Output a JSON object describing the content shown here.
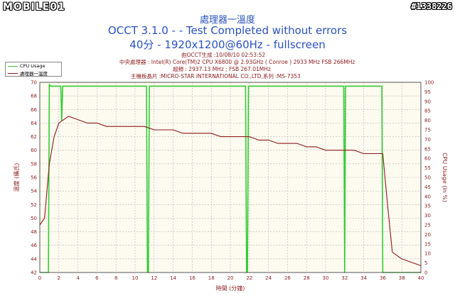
{
  "watermarks": {
    "left": "MOBILE01",
    "right": "#1338226"
  },
  "title_lines": [
    "處理器一溫度",
    "OCCT 3.1.0 -  - Test Completed without errors",
    "40分 - 1920x1200@60Hz - fullscreen"
  ],
  "info_lines": [
    "由OCCT生成 :10/08/10 02:53:52",
    "中央處理器 : Intel(R) Core(TM)2 CPU X6800 @ 2.93GHz ( Conroe ) 2933 MHz FSB 266MHz",
    "超頻 : 2937.13 MHz ; FSB 267.01MHz",
    "主機板晶片 :MICRO-STAR INTERNATIONAL CO.,LTD,系列 :MS-7353"
  ],
  "colors": {
    "cpu_usage": "#33cc33",
    "temperature": "#8b1a1a",
    "text_blue": "#2a52be",
    "plot_bg": "#fdfaf0",
    "grid": "#b5b5b5"
  },
  "chart_data": {
    "type": "line",
    "xlabel": "時間 (分鐘)",
    "ylabel_left": "溫度 (攝氏)",
    "ylabel_right": "CPU Usage (in %)",
    "xlim": [
      0,
      40
    ],
    "ylim_left": [
      42,
      70
    ],
    "ylim_right": [
      0,
      100
    ],
    "x_ticks": [
      0,
      2,
      4,
      6,
      8,
      10,
      12,
      14,
      16,
      18,
      20,
      22,
      24,
      26,
      28,
      30,
      32,
      34,
      36,
      38,
      40
    ],
    "y_ticks_left": [
      42,
      44,
      46,
      48,
      50,
      52,
      54,
      56,
      58,
      60,
      62,
      64,
      66,
      68,
      70
    ],
    "y_ticks_right": [
      0,
      5,
      10,
      15,
      20,
      25,
      30,
      35,
      40,
      45,
      50,
      55,
      60,
      65,
      70,
      75,
      80,
      85,
      90,
      95,
      100
    ],
    "grid": true,
    "legend_position": "top-left",
    "series": [
      {
        "name": "CPU Usage",
        "axis": "right",
        "x": [
          0,
          0.9,
          1.0,
          1.1,
          2.2,
          2.3,
          2.4,
          11.2,
          11.3,
          11.4,
          11.5,
          11.6,
          21.6,
          21.7,
          21.8,
          21.9,
          22.0,
          31.9,
          32.0,
          32.1,
          32.2,
          35.9,
          36.0,
          36.1,
          40
        ],
        "y": [
          0,
          0,
          99,
          98,
          98,
          80,
          98,
          98,
          0,
          0,
          98,
          98,
          98,
          0,
          0,
          98,
          98,
          98,
          0,
          98,
          98,
          98,
          0,
          0,
          0
        ]
      },
      {
        "name": "處理器一溫度",
        "axis": "left",
        "x": [
          0,
          0.5,
          1.0,
          1.5,
          2,
          3,
          4,
          5,
          6,
          7,
          8,
          9,
          10,
          11,
          12,
          13,
          14,
          15,
          16,
          17,
          18,
          19,
          20,
          21,
          22,
          23,
          24,
          25,
          26,
          27,
          28,
          29,
          30,
          31,
          32,
          33,
          34,
          35,
          36,
          36.5,
          37,
          38,
          39,
          40
        ],
        "y": [
          49,
          50,
          58,
          62,
          64,
          65,
          64.5,
          64,
          64,
          63.5,
          63.5,
          63.5,
          63.5,
          63.5,
          63,
          63,
          63,
          62.5,
          62.5,
          62.5,
          62.5,
          62,
          62,
          62,
          62,
          61.5,
          61.5,
          61,
          61,
          61,
          60.5,
          60.5,
          60,
          60,
          60,
          60,
          59.5,
          59.5,
          59.5,
          52,
          45,
          44,
          43.5,
          43
        ]
      }
    ]
  }
}
